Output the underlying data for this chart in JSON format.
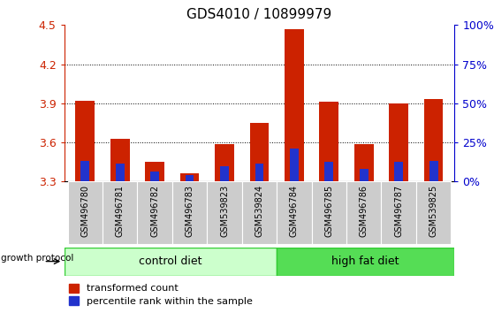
{
  "title": "GDS4010 / 10899979",
  "samples": [
    "GSM496780",
    "GSM496781",
    "GSM496782",
    "GSM496783",
    "GSM539823",
    "GSM539824",
    "GSM496784",
    "GSM496785",
    "GSM496786",
    "GSM496787",
    "GSM539825"
  ],
  "red_values": [
    3.92,
    3.63,
    3.45,
    3.36,
    3.59,
    3.75,
    4.47,
    3.91,
    3.59,
    3.9,
    3.93
  ],
  "blue_values": [
    3.46,
    3.44,
    3.38,
    3.35,
    3.42,
    3.44,
    3.55,
    3.45,
    3.4,
    3.45,
    3.46
  ],
  "ymin": 3.3,
  "ymax": 4.5,
  "yticks": [
    3.3,
    3.6,
    3.9,
    4.2,
    4.5
  ],
  "right_yticks": [
    0,
    25,
    50,
    75,
    100
  ],
  "control_diet_count": 6,
  "high_fat_diet_count": 5,
  "control_diet_label": "control diet",
  "high_fat_diet_label": "high fat diet",
  "growth_protocol_label": "growth protocol",
  "legend_red_label": "transformed count",
  "legend_blue_label": "percentile rank within the sample",
  "bar_width": 0.55,
  "red_color": "#CC2200",
  "blue_color": "#2233CC",
  "control_bg_light": "#CCFFCC",
  "control_bg_dark": "#55DD55",
  "highfat_bg_dark": "#33CC33",
  "sample_box_bg": "#CCCCCC",
  "xlabel_color": "#CC2200",
  "ylabel_right_color": "#0000CC"
}
